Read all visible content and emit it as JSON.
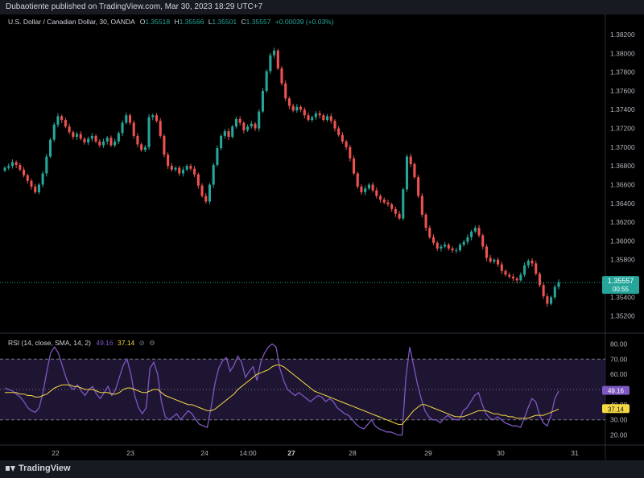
{
  "header": {
    "published_text": "Dubaotiente published on TradingView.com, Mar 30, 2023 18:29 UTC+7"
  },
  "legend": {
    "symbol": "U.S. Dollar / Canadian Dollar, 30, OANDA",
    "o_label": "O",
    "o_value": "1.35518",
    "h_label": "H",
    "h_value": "1.35566",
    "l_label": "L",
    "l_value": "1.35501",
    "c_label": "C",
    "c_value": "1.35557",
    "change": "+0.00039 (+0.03%)"
  },
  "price_axis": {
    "ticks": [
      "1.38200",
      "1.38000",
      "1.37800",
      "1.37600",
      "1.37400",
      "1.37200",
      "1.37000",
      "1.36800",
      "1.36600",
      "1.36400",
      "1.36200",
      "1.36000",
      "1.35800",
      "1.35600",
      "1.35400",
      "1.35200"
    ],
    "current_price": "1.35557",
    "countdown": "00:55"
  },
  "rsi": {
    "label": "RSI (14, close, SMA, 14, 2)",
    "rsi_value": "49.16",
    "sma_value": "37.14",
    "ticks": [
      "80.00",
      "70.00",
      "60.00",
      "40.00",
      "30.00",
      "20.00"
    ]
  },
  "time_axis": {
    "labels": [
      "22",
      "23",
      "24",
      "14:00",
      "27",
      "28",
      "29",
      "30",
      "31"
    ]
  },
  "footer": {
    "brand": "TradingView"
  },
  "colors": {
    "up": "#26a69a",
    "down": "#ef5350",
    "rsi_line": "#7e57c2",
    "rsi_sma": "#f5d742",
    "rsi_band": "#1e1533",
    "background": "#000000"
  },
  "chart_data": [
    {
      "type": "candlestick",
      "title": "U.S. Dollar / Canadian Dollar, 30, OANDA",
      "ylim": [
        1.3512,
        1.3826
      ],
      "x_labels": [
        "22",
        "23",
        "24",
        "14:00",
        "27",
        "28",
        "29",
        "30",
        "31"
      ],
      "close_series": [
        1.3678,
        1.368,
        1.3684,
        1.3681,
        1.3676,
        1.367,
        1.3664,
        1.3658,
        1.3652,
        1.366,
        1.3672,
        1.369,
        1.3708,
        1.3724,
        1.3733,
        1.3729,
        1.3722,
        1.3716,
        1.3711,
        1.3714,
        1.3709,
        1.3705,
        1.3709,
        1.3712,
        1.3706,
        1.3702,
        1.3706,
        1.371,
        1.3702,
        1.3706,
        1.3715,
        1.3726,
        1.3734,
        1.3726,
        1.3712,
        1.3703,
        1.3697,
        1.37,
        1.3732,
        1.3734,
        1.3728,
        1.3712,
        1.3692,
        1.368,
        1.3676,
        1.3678,
        1.3672,
        1.3676,
        1.368,
        1.3677,
        1.3671,
        1.3659,
        1.3648,
        1.3642,
        1.366,
        1.3681,
        1.3699,
        1.3712,
        1.3717,
        1.3711,
        1.3722,
        1.373,
        1.3726,
        1.3718,
        1.3722,
        1.3725,
        1.372,
        1.3738,
        1.376,
        1.3781,
        1.3798,
        1.3803,
        1.3784,
        1.3768,
        1.3752,
        1.3744,
        1.3739,
        1.3743,
        1.374,
        1.3734,
        1.3729,
        1.3732,
        1.3736,
        1.3734,
        1.3729,
        1.3733,
        1.3728,
        1.372,
        1.3713,
        1.3706,
        1.37,
        1.3688,
        1.3672,
        1.3658,
        1.3652,
        1.3656,
        1.366,
        1.3654,
        1.3648,
        1.3644,
        1.3641,
        1.3639,
        1.3634,
        1.3629,
        1.3624,
        1.3655,
        1.369,
        1.3682,
        1.3668,
        1.3648,
        1.3628,
        1.3614,
        1.3604,
        1.3598,
        1.3592,
        1.3594,
        1.3596,
        1.3592,
        1.359,
        1.359,
        1.3596,
        1.3599,
        1.3604,
        1.361,
        1.3614,
        1.3606,
        1.3594,
        1.3582,
        1.3578,
        1.358,
        1.3575,
        1.3568,
        1.3564,
        1.3562,
        1.356,
        1.3558,
        1.3564,
        1.3574,
        1.3579,
        1.3576,
        1.3565,
        1.3553,
        1.3541,
        1.3533,
        1.354,
        1.3551,
        1.3556
      ],
      "current_price": 1.35557,
      "ohlc_last": {
        "open": 1.35518,
        "high": 1.35566,
        "low": 1.35501,
        "close": 1.35557
      },
      "change": 0.00039,
      "change_pct": 0.03
    },
    {
      "type": "line",
      "title": "RSI (14, close, SMA, 14, 2)",
      "ylim": [
        15,
        85
      ],
      "series": [
        {
          "values": [
            51,
            50,
            49,
            47,
            45,
            42,
            38,
            36,
            35,
            38,
            48,
            62,
            74,
            78,
            74,
            66,
            58,
            52,
            50,
            53,
            49,
            46,
            50,
            52,
            47,
            44,
            48,
            52,
            46,
            50,
            58,
            66,
            70,
            60,
            46,
            38,
            34,
            38,
            64,
            68,
            60,
            42,
            32,
            30,
            32,
            34,
            30,
            33,
            36,
            34,
            30,
            27,
            26,
            25,
            38,
            54,
            64,
            69,
            71,
            62,
            66,
            72,
            68,
            58,
            62,
            65,
            56,
            68,
            74,
            78,
            80,
            78,
            64,
            56,
            50,
            48,
            46,
            48,
            46,
            44,
            42,
            44,
            46,
            45,
            42,
            44,
            42,
            38,
            36,
            34,
            33,
            30,
            27,
            25,
            24,
            27,
            30,
            26,
            24,
            23,
            22,
            22,
            21,
            20,
            20,
            58,
            78,
            66,
            54,
            44,
            36,
            32,
            30,
            30,
            28,
            31,
            33,
            31,
            30,
            30,
            36,
            38,
            42,
            46,
            48,
            40,
            34,
            31,
            30,
            32,
            30,
            28,
            27,
            26,
            26,
            25,
            31,
            38,
            44,
            42,
            33,
            28,
            26,
            33,
            44,
            49
          ]
        },
        {
          "values": [
            48,
            48,
            48,
            48,
            47,
            47,
            46,
            46,
            45,
            45,
            46,
            47,
            49,
            51,
            52,
            53,
            53,
            53,
            52,
            52,
            51,
            50,
            50,
            50,
            49,
            48,
            48,
            48,
            47,
            47,
            48,
            50,
            51,
            51,
            50,
            49,
            48,
            48,
            49,
            50,
            50,
            48,
            46,
            45,
            44,
            43,
            42,
            41,
            40,
            40,
            39,
            38,
            37,
            36,
            36,
            37,
            39,
            41,
            43,
            45,
            47,
            50,
            52,
            54,
            56,
            58,
            60,
            61,
            62,
            63,
            65,
            66,
            66,
            65,
            63,
            61,
            59,
            57,
            55,
            53,
            51,
            49,
            48,
            47,
            46,
            45,
            44,
            43,
            42,
            41,
            40,
            39,
            38,
            37,
            36,
            35,
            34,
            33,
            32,
            31,
            30,
            29,
            28,
            27,
            27,
            30,
            33,
            36,
            38,
            40,
            40,
            39,
            38,
            37,
            36,
            35,
            34,
            33,
            32,
            32,
            32,
            33,
            34,
            35,
            36,
            36,
            36,
            35,
            34,
            34,
            33,
            33,
            32,
            32,
            31,
            31,
            31,
            31,
            32,
            33,
            33,
            33,
            34,
            35,
            36,
            37.14
          ]
        }
      ],
      "ylabel": "",
      "bands": {
        "upper": 70,
        "lower": 30
      }
    }
  ]
}
